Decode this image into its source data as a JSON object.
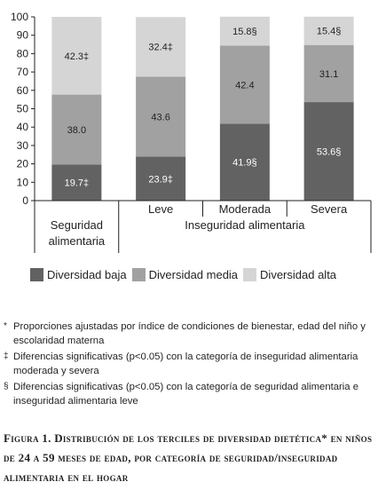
{
  "chart_data": {
    "type": "bar",
    "stacked": true,
    "categories": [
      "Seguridad alimentaria",
      "Leve",
      "Moderada",
      "Severa"
    ],
    "category_group": "Inseguridad alimentaria",
    "series": [
      {
        "name": "Diversidad baja",
        "values": [
          19.7,
          23.9,
          41.9,
          53.6
        ],
        "labels": [
          "19.7‡",
          "23.9‡",
          "41.9§",
          "53.6§"
        ],
        "color": "#626262"
      },
      {
        "name": "Diversidad media",
        "values": [
          38.0,
          43.6,
          42.4,
          31.1
        ],
        "labels": [
          "38.0",
          "43.6",
          "42.4",
          "31.1"
        ],
        "color": "#a1a1a1"
      },
      {
        "name": "Diversidad alta",
        "values": [
          42.3,
          32.4,
          15.8,
          15.4
        ],
        "labels": [
          "42.3‡",
          "32.4‡",
          "15.8§",
          "15.4§"
        ],
        "color": "#d5d5d5"
      }
    ],
    "yticks": [
      0,
      10,
      20,
      30,
      40,
      50,
      60,
      70,
      80,
      90,
      100
    ],
    "ylim": [
      0,
      100
    ],
    "legend_position": "bottom"
  },
  "notes": [
    {
      "symbol": "*",
      "text": "Proporciones ajustadas por índice de condiciones de bienestar, edad del niño y escolaridad materna"
    },
    {
      "symbol": "‡",
      "text": "Diferencias significativas (p<0.05) con la categoría de inseguridad alimentaria moderada y severa"
    },
    {
      "symbol": "§",
      "text": "Diferencias significativas (p<0.05) con la categoría de seguridad alimentaria e inseguridad alimentaria leve"
    }
  ],
  "caption": "Figura 1. Distribución de los terciles de diversidad dietética* en niños de 24 a 59 meses de edad, por categoría de seguridad/inseguridad alimentaria en el hogar"
}
